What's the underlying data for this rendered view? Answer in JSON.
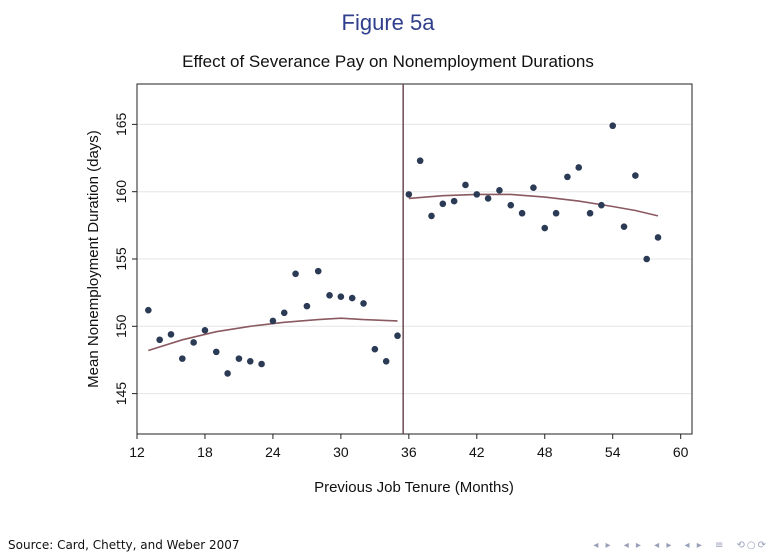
{
  "slide": {
    "title": "Figure 5a"
  },
  "footer": {
    "source": "Source:  Card, Chetty, and Weber 2007"
  },
  "nav_icons": [
    "prev-frame-icon",
    "next-frame-icon",
    "prev-section-icon",
    "next-section-icon",
    "menu-icon",
    "search-icon"
  ],
  "chart_data": {
    "type": "scatter",
    "title": "Effect of Severance Pay on Nonemployment Durations",
    "xlabel": "Previous Job Tenure (Months)",
    "ylabel": "Mean Nonemployment Duration  (days)",
    "xlim": [
      12,
      61
    ],
    "ylim": [
      142,
      168
    ],
    "xticks": [
      12,
      18,
      24,
      30,
      36,
      42,
      48,
      54,
      60
    ],
    "yticks": [
      145,
      150,
      155,
      160,
      165
    ],
    "grid": true,
    "threshold_x": 35.5,
    "point_color": "#2b3a55",
    "fit_color": "#8a5a60",
    "points": [
      {
        "x": 13,
        "y": 151.2
      },
      {
        "x": 14,
        "y": 149.0
      },
      {
        "x": 15,
        "y": 149.4
      },
      {
        "x": 16,
        "y": 147.6
      },
      {
        "x": 17,
        "y": 148.8
      },
      {
        "x": 18,
        "y": 149.7
      },
      {
        "x": 19,
        "y": 148.1
      },
      {
        "x": 20,
        "y": 146.5
      },
      {
        "x": 21,
        "y": 147.6
      },
      {
        "x": 22,
        "y": 147.4
      },
      {
        "x": 23,
        "y": 147.2
      },
      {
        "x": 24,
        "y": 150.4
      },
      {
        "x": 25,
        "y": 151.0
      },
      {
        "x": 26,
        "y": 153.9
      },
      {
        "x": 27,
        "y": 151.5
      },
      {
        "x": 28,
        "y": 154.1
      },
      {
        "x": 29,
        "y": 152.3
      },
      {
        "x": 30,
        "y": 152.2
      },
      {
        "x": 31,
        "y": 152.1
      },
      {
        "x": 32,
        "y": 151.7
      },
      {
        "x": 33,
        "y": 148.3
      },
      {
        "x": 34,
        "y": 147.4
      },
      {
        "x": 35,
        "y": 149.3
      },
      {
        "x": 36,
        "y": 159.8
      },
      {
        "x": 37,
        "y": 162.3
      },
      {
        "x": 38,
        "y": 158.2
      },
      {
        "x": 39,
        "y": 159.1
      },
      {
        "x": 40,
        "y": 159.3
      },
      {
        "x": 41,
        "y": 160.5
      },
      {
        "x": 42,
        "y": 159.8
      },
      {
        "x": 43,
        "y": 159.5
      },
      {
        "x": 44,
        "y": 160.1
      },
      {
        "x": 45,
        "y": 159.0
      },
      {
        "x": 46,
        "y": 158.4
      },
      {
        "x": 47,
        "y": 160.3
      },
      {
        "x": 48,
        "y": 157.3
      },
      {
        "x": 49,
        "y": 158.4
      },
      {
        "x": 50,
        "y": 161.1
      },
      {
        "x": 51,
        "y": 161.8
      },
      {
        "x": 52,
        "y": 158.4
      },
      {
        "x": 53,
        "y": 159.0
      },
      {
        "x": 54,
        "y": 164.9
      },
      {
        "x": 55,
        "y": 157.4
      },
      {
        "x": 56,
        "y": 161.2
      },
      {
        "x": 57,
        "y": 155.0
      },
      {
        "x": 58,
        "y": 156.6
      }
    ],
    "fit_lines": [
      {
        "name": "",
        "x": [
          13,
          16,
          19,
          22,
          25,
          28,
          30,
          32,
          35
        ],
        "y": [
          148.2,
          149.0,
          149.6,
          150.0,
          150.3,
          150.5,
          150.6,
          150.5,
          150.4
        ]
      },
      {
        "name": "",
        "x": [
          36,
          39,
          42,
          45,
          48,
          51,
          54,
          56,
          58
        ],
        "y": [
          159.5,
          159.7,
          159.8,
          159.8,
          159.6,
          159.3,
          158.9,
          158.6,
          158.2
        ]
      }
    ]
  }
}
